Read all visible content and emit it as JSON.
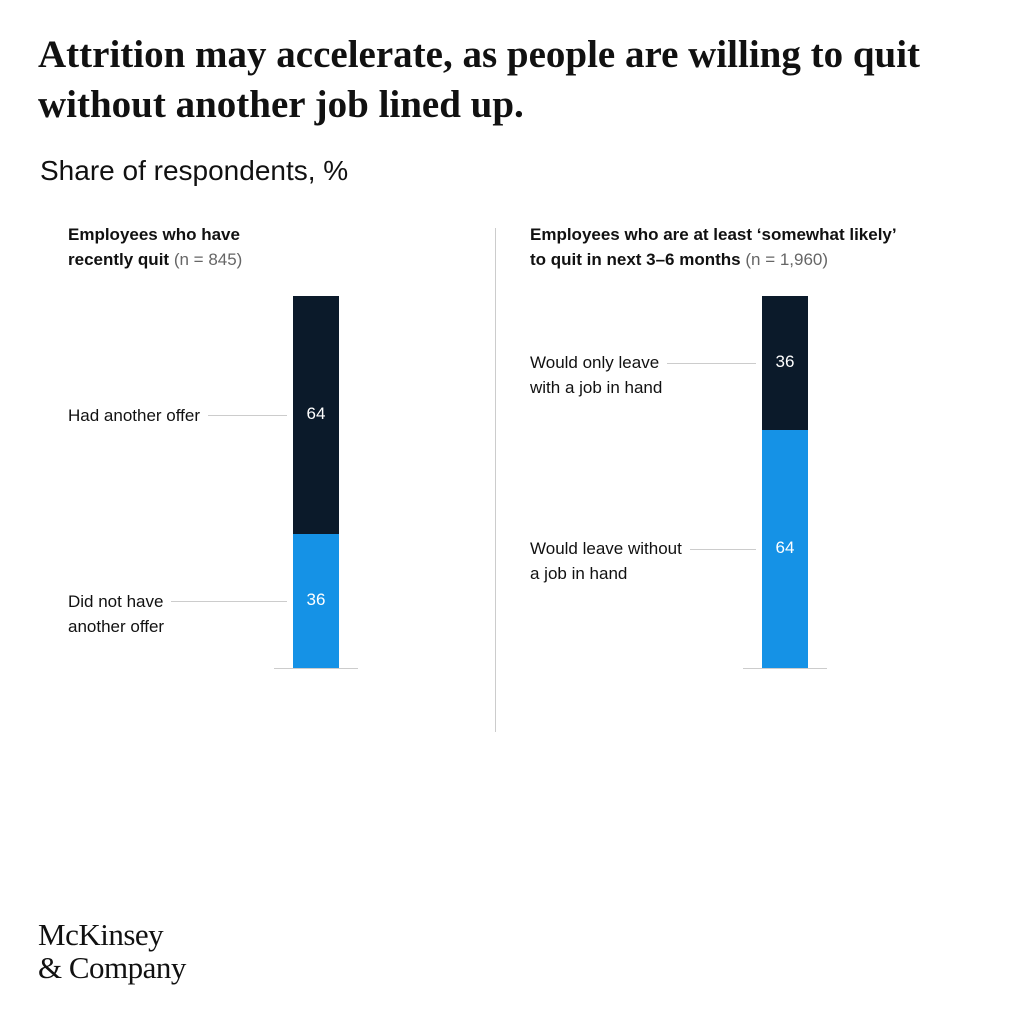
{
  "title": "Attrition may accelerate, as people are willing to quit without another job lined up.",
  "subtitle": "Share of respondents, %",
  "chart_data": [
    {
      "type": "stacked_bar",
      "title": "Employees who have\nrecently quit",
      "note": "(n = 845)",
      "series": [
        {
          "name": "Had another offer",
          "color": "#0b1a2a",
          "values": [
            64
          ]
        },
        {
          "name": "Did not have\nanother offer",
          "color": "#1592e6",
          "values": [
            36
          ]
        }
      ]
    },
    {
      "type": "stacked_bar",
      "title": "Employees who are at least ‘somewhat likely’\nto quit in next 3–6 months",
      "note": "(n = 1,960)",
      "series": [
        {
          "name": "Would only leave\nwith a job in hand",
          "color": "#0b1a2a",
          "values": [
            36
          ]
        },
        {
          "name": "Would leave without\na job in hand",
          "color": "#1592e6",
          "values": [
            64
          ]
        }
      ]
    }
  ],
  "logo": "McKinsey\n& Company"
}
